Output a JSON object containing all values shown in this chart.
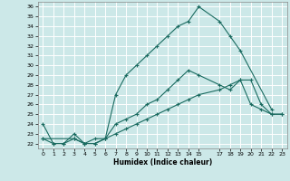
{
  "xlabel": "Humidex (Indice chaleur)",
  "bg_color": "#cce8e8",
  "grid_color": "#ffffff",
  "line_color": "#1a6b60",
  "xlim": [
    -0.5,
    23.5
  ],
  "ylim": [
    21.5,
    36.5
  ],
  "xticks": [
    0,
    1,
    2,
    3,
    4,
    5,
    6,
    7,
    8,
    9,
    10,
    11,
    12,
    13,
    14,
    15,
    17,
    18,
    19,
    20,
    21,
    22,
    23
  ],
  "yticks": [
    22,
    23,
    24,
    25,
    26,
    27,
    28,
    29,
    30,
    31,
    32,
    33,
    34,
    35,
    36
  ],
  "curve1_x": [
    0,
    1,
    2,
    3,
    4,
    5,
    6,
    7,
    8,
    9,
    10,
    11,
    12,
    13,
    14,
    15,
    17,
    18,
    19,
    22
  ],
  "curve1_y": [
    24,
    22,
    22,
    22.5,
    22,
    22,
    22.5,
    27,
    29,
    30,
    31,
    32,
    33,
    34,
    34.5,
    36,
    34.5,
    33,
    31.5,
    25.5
  ],
  "curve2_x": [
    0,
    1,
    2,
    3,
    4,
    5,
    6,
    7,
    8,
    9,
    10,
    11,
    12,
    13,
    14,
    15,
    17,
    18,
    19,
    20,
    21,
    22,
    23
  ],
  "curve2_y": [
    22.5,
    22,
    22,
    23,
    22,
    22.5,
    22.5,
    24,
    24.5,
    25,
    26,
    26.5,
    27.5,
    28.5,
    29.5,
    29,
    28,
    27.5,
    28.5,
    26,
    25.5,
    25,
    25
  ],
  "curve3_x": [
    0,
    3,
    4,
    5,
    6,
    7,
    8,
    9,
    10,
    11,
    12,
    13,
    14,
    15,
    17,
    18,
    19,
    20,
    21,
    22,
    23
  ],
  "curve3_y": [
    22.5,
    22.5,
    22,
    22,
    22.5,
    23,
    23.5,
    24,
    24.5,
    25,
    25.5,
    26,
    26.5,
    27,
    27.5,
    28,
    28.5,
    28.5,
    26,
    25,
    25
  ]
}
